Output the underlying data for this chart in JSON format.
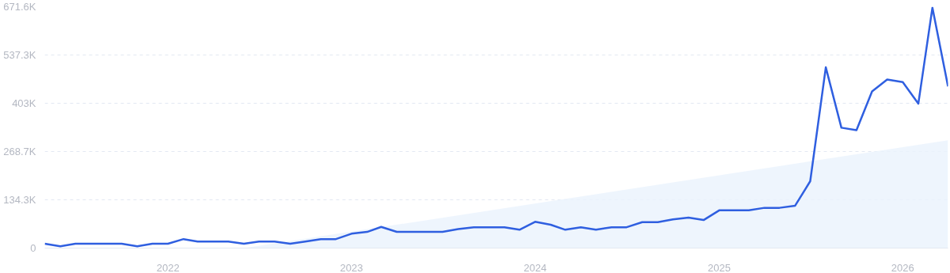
{
  "chart_data": {
    "type": "line",
    "x": [
      "2021-05",
      "2021-06",
      "2021-07",
      "2021-08",
      "2021-09",
      "2021-10",
      "2021-11",
      "2021-12",
      "2022-01",
      "2022-02",
      "2022-03",
      "2022-04",
      "2022-05",
      "2022-06",
      "2022-07",
      "2022-08",
      "2022-09",
      "2022-10",
      "2022-11",
      "2022-12",
      "2023-01",
      "2023-02",
      "2023-03",
      "2023-04",
      "2023-05",
      "2023-06",
      "2023-07",
      "2023-08",
      "2023-09",
      "2023-10",
      "2023-11",
      "2023-12",
      "2024-01",
      "2024-02",
      "2024-03",
      "2024-04",
      "2024-05",
      "2024-06",
      "2024-07",
      "2024-08",
      "2024-09",
      "2024-10",
      "2024-11",
      "2024-12",
      "2025-01",
      "2025-02",
      "2025-03",
      "2025-04",
      "2025-05",
      "2025-06",
      "2025-07",
      "2025-08",
      "2025-09",
      "2025-10",
      "2025-11",
      "2025-12",
      "2026-01",
      "2026-02",
      "2026-03",
      "2026-04"
    ],
    "series": [
      {
        "type": "area",
        "color": "#eaf2fd",
        "x": [
          "2022-06",
          "2026-04"
        ],
        "values": [
          0,
          300000
        ]
      },
      {
        "color": "#2f5fe0",
        "values": [
          12000,
          5000,
          12000,
          12000,
          12000,
          12000,
          5000,
          12000,
          12000,
          25000,
          18000,
          18000,
          18000,
          12000,
          18000,
          18000,
          12000,
          18000,
          25000,
          25000,
          40000,
          45000,
          59000,
          45000,
          45000,
          45000,
          45000,
          53000,
          58000,
          58000,
          58000,
          51000,
          73000,
          65000,
          51000,
          58000,
          51000,
          58000,
          58000,
          72000,
          72000,
          80000,
          85000,
          78000,
          105000,
          105000,
          105000,
          112000,
          112000,
          118000,
          186000,
          503000,
          335000,
          328000,
          436000,
          469000,
          462000,
          402000,
          669000,
          450000
        ]
      }
    ],
    "xlim": [
      "2021-05",
      "2026-04"
    ],
    "xticks": [
      {
        "value": "2022-01",
        "label": "2022"
      },
      {
        "value": "2023-01",
        "label": "2023"
      },
      {
        "value": "2024-01",
        "label": "2024"
      },
      {
        "value": "2025-01",
        "label": "2025"
      },
      {
        "value": "2026-01",
        "label": "2026"
      }
    ],
    "ylim": [
      0,
      671600
    ],
    "yticks": [
      0,
      {
        "value": 134300,
        "label": "134.3K"
      },
      {
        "value": 268700,
        "label": "268.7K"
      },
      {
        "value": 403000,
        "label": "403K"
      },
      {
        "value": 537300,
        "label": "537.3K"
      },
      {
        "value": 671600,
        "label": "671.6K"
      }
    ],
    "grid": "y",
    "marker": "none",
    "line_style": "solid"
  }
}
